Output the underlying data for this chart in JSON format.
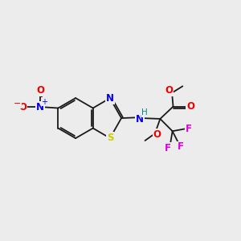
{
  "background_color": "#ececec",
  "bond_color": "#1a1a1a",
  "atom_colors": {
    "N": "#0000ee",
    "O": "#ee0000",
    "S": "#cccc00",
    "F": "#dd00dd",
    "H": "#008888",
    "C": "#1a1a1a"
  },
  "figsize": [
    3.0,
    3.0
  ],
  "dpi": 100
}
